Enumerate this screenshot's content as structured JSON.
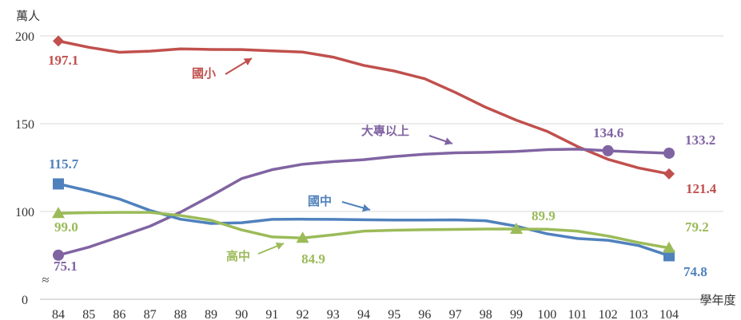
{
  "chart_data": {
    "type": "line",
    "y_unit": "萬人",
    "x_unit": "學年度",
    "x": [
      84,
      85,
      86,
      87,
      88,
      89,
      90,
      91,
      92,
      93,
      94,
      95,
      96,
      97,
      98,
      99,
      100,
      101,
      102,
      103,
      104
    ],
    "ylim": [
      60,
      200
    ],
    "y_ticks": [
      "200",
      "150",
      "100"
    ],
    "y_zero": "0",
    "axis_break": "≈",
    "series": [
      {
        "name": "國小",
        "color": "#c0504d",
        "marker": "diamond",
        "values": [
          197.1,
          193.5,
          190.7,
          191.3,
          192.6,
          192.3,
          192.2,
          191.5,
          190.8,
          187.9,
          183.2,
          180.0,
          175.6,
          167.8,
          159.3,
          152.0,
          145.7,
          137.0,
          129.7,
          124.8,
          121.4
        ]
      },
      {
        "name": "大專以上",
        "color": "#8064a2",
        "marker": "circle",
        "values": [
          75.1,
          79.7,
          85.6,
          91.6,
          99.6,
          108.9,
          118.7,
          123.8,
          126.9,
          128.4,
          129.5,
          131.3,
          132.6,
          133.4,
          133.7,
          134.2,
          135.2,
          135.5,
          134.6,
          133.8,
          133.2
        ]
      },
      {
        "name": "國中",
        "color": "#4f81bd",
        "marker": "square",
        "values": [
          115.7,
          111.7,
          107.1,
          100.6,
          95.6,
          93.2,
          93.6,
          95.5,
          95.6,
          95.5,
          95.3,
          95.1,
          95.1,
          95.2,
          94.7,
          91.6,
          87.3,
          84.6,
          83.6,
          80.6,
          74.8
        ]
      },
      {
        "name": "高中",
        "color": "#9bbb59",
        "marker": "triangle",
        "values": [
          99.0,
          99.3,
          99.5,
          99.5,
          97.7,
          95.0,
          89.5,
          85.5,
          84.9,
          86.7,
          88.8,
          89.3,
          89.6,
          89.8,
          90.0,
          90.0,
          89.9,
          88.8,
          86.0,
          82.3,
          79.2
        ]
      }
    ],
    "data_labels": [
      {
        "series": "國小",
        "text": "197.1"
      },
      {
        "series": "國小",
        "text": "121.4"
      },
      {
        "series": "大專以上",
        "text": "75.1"
      },
      {
        "series": "大專以上",
        "text": "134.6"
      },
      {
        "series": "大專以上",
        "text": "133.2"
      },
      {
        "series": "國中",
        "text": "115.7"
      },
      {
        "series": "國中",
        "text": "74.8"
      },
      {
        "series": "高中",
        "text": "99.0"
      },
      {
        "series": "高中",
        "text": "84.9"
      },
      {
        "series": "高中",
        "text": "89.9"
      },
      {
        "series": "高中",
        "text": "79.2"
      }
    ],
    "series_labels": [
      "國小",
      "大專以上",
      "國中",
      "高中"
    ]
  }
}
